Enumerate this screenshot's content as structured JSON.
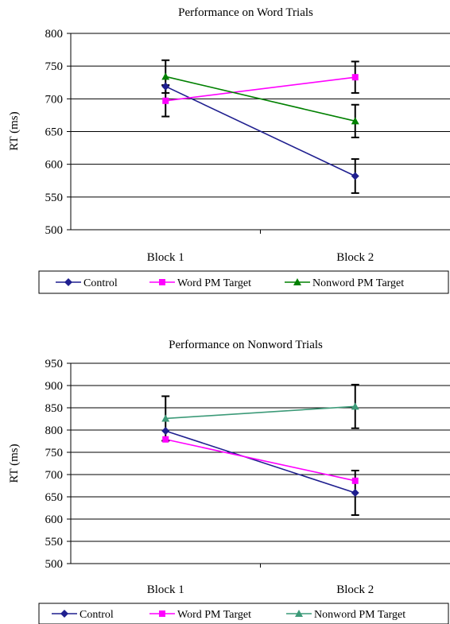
{
  "chart_data": [
    {
      "type": "line",
      "title": "Performance on Word Trials",
      "xlabel": "",
      "ylabel": "RT (ms)",
      "categories": [
        "Block 1",
        "Block 2"
      ],
      "ylim": [
        500,
        800
      ],
      "yticks": [
        500,
        550,
        600,
        650,
        700,
        750,
        800
      ],
      "grid": true,
      "legend_position": "bottom",
      "series": [
        {
          "name": "Control",
          "values": [
            719,
            582
          ],
          "error": [
            null,
            26
          ],
          "color": "#1f1f8f",
          "marker": "diamond"
        },
        {
          "name": "Word PM Target",
          "values": [
            697,
            733
          ],
          "error": [
            24,
            24
          ],
          "color": "#ff00ff",
          "marker": "square"
        },
        {
          "name": "Nonword PM Target",
          "values": [
            734,
            666
          ],
          "error": [
            25,
            25
          ],
          "color": "#008000",
          "marker": "triangle"
        }
      ]
    },
    {
      "type": "line",
      "title": "Performance on Nonword Trials",
      "xlabel": "",
      "ylabel": "RT (ms)",
      "categories": [
        "Block 1",
        "Block 2"
      ],
      "ylim": [
        500,
        950
      ],
      "yticks": [
        500,
        550,
        600,
        650,
        700,
        750,
        800,
        850,
        900,
        950
      ],
      "grid": true,
      "legend_position": "bottom",
      "series": [
        {
          "name": "Control",
          "values": [
            798,
            659
          ],
          "error": [
            null,
            50
          ],
          "color": "#1f1f8f",
          "marker": "diamond"
        },
        {
          "name": "Word PM Target",
          "values": [
            779,
            686
          ],
          "error": [
            null,
            null
          ],
          "color": "#ff00ff",
          "marker": "square"
        },
        {
          "name": "Nonword PM Target",
          "values": [
            826,
            853
          ],
          "error": [
            50,
            49
          ],
          "color": "#3c9a78",
          "marker": "triangle"
        }
      ]
    }
  ]
}
